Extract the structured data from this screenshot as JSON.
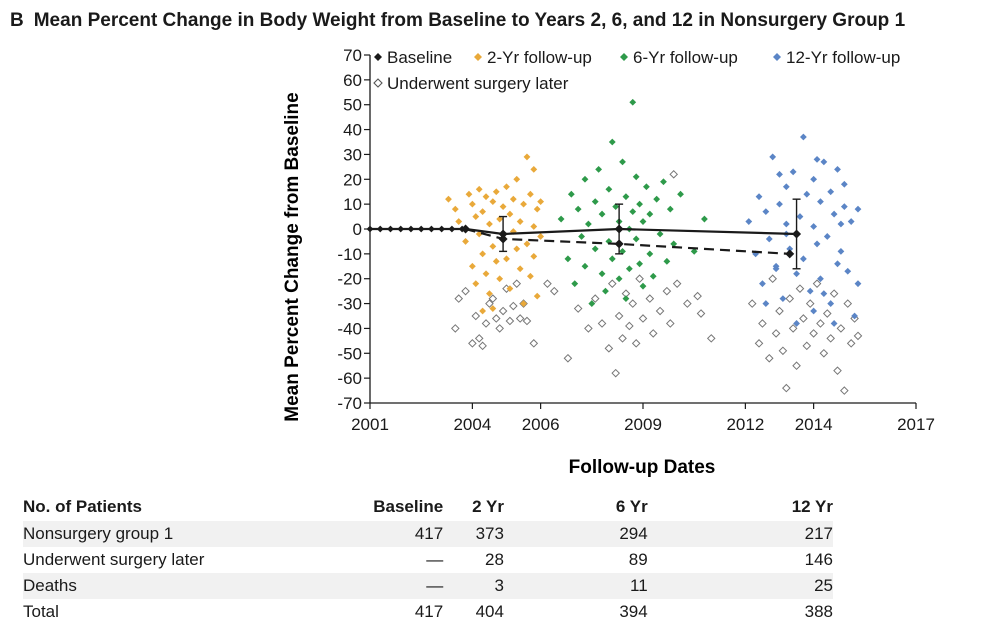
{
  "header": {
    "panel_letter": "B",
    "title": "Mean Percent Change in Body Weight from Baseline to Years 2, 6, and 12 in Nonsurgery Group 1"
  },
  "chart_data": {
    "type": "scatter",
    "xlabel": "Follow-up Dates",
    "ylabel": "Mean Percent Change from Baseline",
    "xlim": [
      2001,
      2017
    ],
    "ylim": [
      -70,
      70
    ],
    "x_ticks": [
      "2001",
      "2004",
      "2006",
      "2009",
      "2012",
      "2014",
      "2017"
    ],
    "y_ticks": [
      "70",
      "60",
      "50",
      "40",
      "30",
      "20",
      "10",
      "0",
      "-10",
      "-20",
      "-30",
      "-40",
      "-50",
      "-60",
      "-70"
    ],
    "grid": false,
    "legend_position": "top",
    "legend": [
      {
        "name": "Baseline",
        "color": "#1a1a1a",
        "marker": "filled-diamond"
      },
      {
        "name": "2-Yr follow-up",
        "color": "#e9a93a",
        "marker": "filled-diamond"
      },
      {
        "name": "6-Yr follow-up",
        "color": "#2e9a4a",
        "marker": "filled-diamond"
      },
      {
        "name": "12-Yr follow-up",
        "color": "#5b85c6",
        "marker": "filled-diamond"
      },
      {
        "name": "Underwent surgery later",
        "color": "#888888",
        "marker": "open-diamond"
      }
    ],
    "mean_lines": [
      {
        "style": "solid",
        "points": [
          [
            2001.0,
            0
          ],
          [
            2003.8,
            0
          ],
          [
            2004.9,
            -2
          ],
          [
            2008.3,
            0
          ],
          [
            2013.5,
            -2
          ]
        ]
      },
      {
        "style": "dashed",
        "points": [
          [
            2003.8,
            0
          ],
          [
            2004.9,
            -4
          ],
          [
            2008.3,
            -6
          ],
          [
            2013.3,
            -10
          ]
        ]
      }
    ],
    "error_bars": [
      {
        "x": 2004.9,
        "y": -2,
        "low": -9,
        "high": 5
      },
      {
        "x": 2008.3,
        "y": 0,
        "low": -10,
        "high": 10
      },
      {
        "x": 2013.5,
        "y": -2,
        "low": -16,
        "high": 12
      }
    ],
    "series": [
      {
        "name": "Baseline",
        "points": [
          [
            2001.0,
            0
          ],
          [
            2001.3,
            0
          ],
          [
            2001.6,
            0
          ],
          [
            2001.9,
            0
          ],
          [
            2002.2,
            0
          ],
          [
            2002.5,
            0
          ],
          [
            2002.8,
            0
          ],
          [
            2003.1,
            0
          ],
          [
            2003.4,
            0
          ],
          [
            2003.7,
            0
          ]
        ]
      },
      {
        "name": "2-Yr follow-up",
        "points": [
          [
            2003.3,
            12
          ],
          [
            2003.5,
            8
          ],
          [
            2003.6,
            3
          ],
          [
            2003.8,
            -5
          ],
          [
            2003.9,
            14
          ],
          [
            2004.0,
            10
          ],
          [
            2004.0,
            -15
          ],
          [
            2004.1,
            5
          ],
          [
            2004.1,
            -22
          ],
          [
            2004.2,
            16
          ],
          [
            2004.2,
            -2
          ],
          [
            2004.3,
            7
          ],
          [
            2004.3,
            -10
          ],
          [
            2004.4,
            13
          ],
          [
            2004.4,
            -18
          ],
          [
            2004.5,
            2
          ],
          [
            2004.5,
            -26
          ],
          [
            2004.6,
            11
          ],
          [
            2004.6,
            -7
          ],
          [
            2004.7,
            15
          ],
          [
            2004.7,
            -13
          ],
          [
            2004.8,
            4
          ],
          [
            2004.8,
            -20
          ],
          [
            2004.9,
            9
          ],
          [
            2004.9,
            -4
          ],
          [
            2005.0,
            17
          ],
          [
            2005.0,
            -12
          ],
          [
            2005.1,
            6
          ],
          [
            2005.1,
            -24
          ],
          [
            2005.2,
            12
          ],
          [
            2005.2,
            -1
          ],
          [
            2005.3,
            20
          ],
          [
            2005.3,
            -8
          ],
          [
            2005.4,
            3
          ],
          [
            2005.4,
            -16
          ],
          [
            2005.5,
            10
          ],
          [
            2005.5,
            -30
          ],
          [
            2005.6,
            29
          ],
          [
            2005.6,
            -6
          ],
          [
            2005.7,
            14
          ],
          [
            2005.7,
            -19
          ],
          [
            2005.8,
            1
          ],
          [
            2005.8,
            -11
          ],
          [
            2005.9,
            8
          ],
          [
            2005.9,
            -27
          ],
          [
            2006.0,
            -3
          ],
          [
            2005.8,
            24
          ],
          [
            2006.0,
            11
          ],
          [
            2004.3,
            -33
          ],
          [
            2004.6,
            -32
          ]
        ]
      },
      {
        "name": "6-Yr follow-up",
        "points": [
          [
            2006.6,
            4
          ],
          [
            2006.8,
            -12
          ],
          [
            2006.9,
            14
          ],
          [
            2007.0,
            -22
          ],
          [
            2007.1,
            8
          ],
          [
            2007.2,
            -3
          ],
          [
            2007.3,
            20
          ],
          [
            2007.3,
            -15
          ],
          [
            2007.4,
            2
          ],
          [
            2007.5,
            -30
          ],
          [
            2007.6,
            11
          ],
          [
            2007.6,
            -8
          ],
          [
            2007.7,
            24
          ],
          [
            2007.8,
            -18
          ],
          [
            2007.8,
            6
          ],
          [
            2007.9,
            -25
          ],
          [
            2008.0,
            16
          ],
          [
            2008.0,
            -5
          ],
          [
            2008.1,
            35
          ],
          [
            2008.1,
            -12
          ],
          [
            2008.2,
            9
          ],
          [
            2008.3,
            -20
          ],
          [
            2008.3,
            3
          ],
          [
            2008.4,
            27
          ],
          [
            2008.4,
            -9
          ],
          [
            2008.5,
            13
          ],
          [
            2008.5,
            -28
          ],
          [
            2008.6,
            0
          ],
          [
            2008.6,
            -16
          ],
          [
            2008.7,
            51
          ],
          [
            2008.7,
            7
          ],
          [
            2008.8,
            -4
          ],
          [
            2008.8,
            21
          ],
          [
            2008.9,
            -14
          ],
          [
            2008.9,
            10
          ],
          [
            2009.0,
            -23
          ],
          [
            2009.0,
            3
          ],
          [
            2009.1,
            17
          ],
          [
            2009.2,
            -10
          ],
          [
            2009.2,
            6
          ],
          [
            2009.3,
            -19
          ],
          [
            2009.4,
            12
          ],
          [
            2009.5,
            -2
          ],
          [
            2009.6,
            19
          ],
          [
            2009.7,
            -13
          ],
          [
            2009.8,
            8
          ],
          [
            2009.9,
            -6
          ],
          [
            2010.1,
            14
          ],
          [
            2010.5,
            -9
          ],
          [
            2010.8,
            4
          ]
        ]
      },
      {
        "name": "12-Yr follow-up",
        "points": [
          [
            2012.1,
            3
          ],
          [
            2012.3,
            -10
          ],
          [
            2012.4,
            13
          ],
          [
            2012.5,
            -22
          ],
          [
            2012.6,
            7
          ],
          [
            2012.7,
            -4
          ],
          [
            2012.8,
            29
          ],
          [
            2012.9,
            -15
          ],
          [
            2013.0,
            10
          ],
          [
            2013.1,
            -28
          ],
          [
            2013.2,
            2
          ],
          [
            2013.2,
            17
          ],
          [
            2013.3,
            -8
          ],
          [
            2013.4,
            23
          ],
          [
            2013.5,
            -18
          ],
          [
            2013.6,
            5
          ],
          [
            2013.7,
            37
          ],
          [
            2013.7,
            -12
          ],
          [
            2013.8,
            14
          ],
          [
            2013.9,
            -25
          ],
          [
            2014.0,
            1
          ],
          [
            2014.0,
            20
          ],
          [
            2014.1,
            -6
          ],
          [
            2014.2,
            11
          ],
          [
            2014.2,
            -20
          ],
          [
            2014.3,
            27
          ],
          [
            2014.4,
            -3
          ],
          [
            2014.5,
            15
          ],
          [
            2014.5,
            -30
          ],
          [
            2014.6,
            6
          ],
          [
            2014.7,
            -14
          ],
          [
            2014.7,
            24
          ],
          [
            2014.8,
            -9
          ],
          [
            2014.9,
            9
          ],
          [
            2015.0,
            -17
          ],
          [
            2015.1,
            3
          ],
          [
            2015.2,
            -35
          ],
          [
            2015.3,
            8
          ],
          [
            2014.1,
            28
          ],
          [
            2013.5,
            -38
          ],
          [
            2014.6,
            -38
          ],
          [
            2012.6,
            -30
          ],
          [
            2013.0,
            22
          ],
          [
            2014.9,
            18
          ],
          [
            2015.3,
            -22
          ],
          [
            2013.2,
            -2
          ],
          [
            2014.3,
            -26
          ],
          [
            2012.9,
            -16
          ],
          [
            2014.8,
            2
          ],
          [
            2014.0,
            -33
          ]
        ]
      },
      {
        "name": "Underwent surgery later",
        "points": [
          [
            2003.5,
            -40
          ],
          [
            2003.6,
            -28
          ],
          [
            2003.8,
            -25
          ],
          [
            2004.0,
            -46
          ],
          [
            2004.1,
            -35
          ],
          [
            2004.2,
            -44
          ],
          [
            2004.3,
            -47
          ],
          [
            2004.4,
            -38
          ],
          [
            2004.5,
            -30
          ],
          [
            2004.6,
            -28
          ],
          [
            2004.7,
            -36
          ],
          [
            2004.8,
            -40
          ],
          [
            2004.9,
            -33
          ],
          [
            2005.0,
            -24
          ],
          [
            2005.1,
            -37
          ],
          [
            2005.2,
            -31
          ],
          [
            2005.3,
            -22
          ],
          [
            2005.4,
            -36
          ],
          [
            2005.5,
            -30
          ],
          [
            2005.6,
            -37
          ],
          [
            2005.8,
            -46
          ],
          [
            2006.2,
            -22
          ],
          [
            2006.4,
            -25
          ],
          [
            2006.8,
            -52
          ],
          [
            2007.1,
            -32
          ],
          [
            2007.4,
            -40
          ],
          [
            2007.6,
            -28
          ],
          [
            2007.8,
            -38
          ],
          [
            2008.0,
            -48
          ],
          [
            2008.1,
            -22
          ],
          [
            2008.2,
            -58
          ],
          [
            2008.3,
            -35
          ],
          [
            2008.4,
            -44
          ],
          [
            2008.5,
            -26
          ],
          [
            2008.6,
            -39
          ],
          [
            2008.7,
            -30
          ],
          [
            2008.8,
            -46
          ],
          [
            2008.9,
            -20
          ],
          [
            2009.0,
            -36
          ],
          [
            2009.2,
            -28
          ],
          [
            2009.3,
            -42
          ],
          [
            2009.5,
            -33
          ],
          [
            2009.7,
            -25
          ],
          [
            2009.8,
            -38
          ],
          [
            2010.0,
            -22
          ],
          [
            2010.3,
            -30
          ],
          [
            2010.7,
            -34
          ],
          [
            2009.9,
            22
          ],
          [
            2010.6,
            -27
          ],
          [
            2011.0,
            -44
          ],
          [
            2012.2,
            -30
          ],
          [
            2012.4,
            -46
          ],
          [
            2012.5,
            -38
          ],
          [
            2012.7,
            -52
          ],
          [
            2012.8,
            -20
          ],
          [
            2012.9,
            -42
          ],
          [
            2013.0,
            -33
          ],
          [
            2013.1,
            -49
          ],
          [
            2013.2,
            -64
          ],
          [
            2013.3,
            -28
          ],
          [
            2013.4,
            -40
          ],
          [
            2013.5,
            -55
          ],
          [
            2013.6,
            -24
          ],
          [
            2013.7,
            -36
          ],
          [
            2013.8,
            -47
          ],
          [
            2013.9,
            -30
          ],
          [
            2014.0,
            -42
          ],
          [
            2014.1,
            -22
          ],
          [
            2014.2,
            -38
          ],
          [
            2014.3,
            -50
          ],
          [
            2014.4,
            -34
          ],
          [
            2014.5,
            -44
          ],
          [
            2014.6,
            -26
          ],
          [
            2014.7,
            -57
          ],
          [
            2014.8,
            -40
          ],
          [
            2014.9,
            -65
          ],
          [
            2015.0,
            -30
          ],
          [
            2015.1,
            -46
          ],
          [
            2015.2,
            -36
          ],
          [
            2015.3,
            -43
          ]
        ]
      }
    ]
  },
  "table": {
    "columns": [
      "No. of Patients",
      "Baseline",
      "2 Yr",
      "6 Yr",
      "12 Yr"
    ],
    "rows": [
      {
        "label": "Nonsurgery group 1",
        "values": [
          "417",
          "373",
          "294",
          "217"
        ]
      },
      {
        "label": "Underwent surgery later",
        "values": [
          "—",
          "28",
          "89",
          "146"
        ]
      },
      {
        "label": "Deaths",
        "values": [
          "—",
          "3",
          "11",
          "25"
        ]
      },
      {
        "label": "Total",
        "values": [
          "417",
          "404",
          "394",
          "388"
        ]
      }
    ]
  }
}
